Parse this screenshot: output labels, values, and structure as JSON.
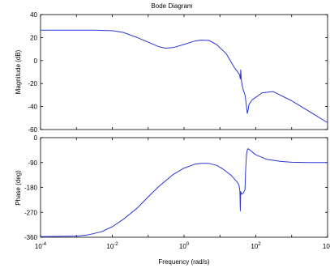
{
  "chart_data": {
    "type": "line",
    "title": "Bode Diagram",
    "xlabel": "Frequency (rad/s)",
    "x_scale": "log",
    "x_ticks": [
      "10^-4",
      "10^-2",
      "10^0",
      "10^2",
      "10^4"
    ],
    "colors": {
      "curve": "#2a36d0"
    },
    "panels": [
      {
        "name": "magnitude",
        "ylabel": "Magnitude (dB)",
        "ylim": [
          -60,
          40
        ],
        "y_ticks": [
          40,
          20,
          0,
          -20,
          -40,
          -60
        ],
        "series": [
          {
            "x": [
              0.0001,
              0.001,
              0.003,
              0.01,
              0.02,
              0.05,
              0.1,
              0.2,
              0.3,
              0.5,
              1,
              2,
              3,
              5,
              8,
              15,
              25,
              35,
              37,
              38,
              39,
              40,
              42,
              45,
              50,
              55,
              58,
              60,
              65,
              80,
              100,
              150,
              300,
              1000,
              3000,
              10000
            ],
            "values": [
              26.5,
              26.5,
              26.4,
              26,
              24.5,
              20,
              16,
              12,
              10.8,
              11.3,
              14,
              17,
              17.8,
              17.5,
              14,
              6,
              -6,
              -12,
              -16,
              -8,
              -14,
              -18,
              -22,
              -26,
              -30,
              -40,
              -46,
              -44,
              -38,
              -34,
              -32,
              -28,
              -27,
              -35,
              -44,
              -54
            ]
          }
        ]
      },
      {
        "name": "phase",
        "ylabel": "Phase (deg)",
        "ylim": [
          -360,
          0
        ],
        "y_ticks": [
          0,
          -90,
          -180,
          -270,
          -360
        ],
        "series": [
          {
            "x": [
              0.0001,
              0.001,
              0.002,
              0.005,
              0.01,
              0.02,
              0.05,
              0.1,
              0.2,
              0.5,
              1,
              2,
              3,
              5,
              8,
              12,
              20,
              30,
              34,
              36,
              37,
              37.5,
              38,
              40,
              45,
              50,
              52,
              55,
              58,
              60,
              65,
              80,
              100,
              200,
              500,
              1000,
              3000,
              10000
            ],
            "values": [
              -358,
              -356,
              -352,
              -340,
              -322,
              -296,
              -254,
              -214,
              -176,
              -133,
              -110,
              -96,
              -93,
              -93,
              -100,
              -113,
              -135,
              -160,
              -172,
              -195,
              -265,
              -210,
              -195,
              -205,
              -200,
              -188,
              -120,
              -60,
              -45,
              -40,
              -42,
              -52,
              -62,
              -78,
              -86,
              -89,
              -90,
              -90
            ]
          }
        ]
      }
    ]
  }
}
